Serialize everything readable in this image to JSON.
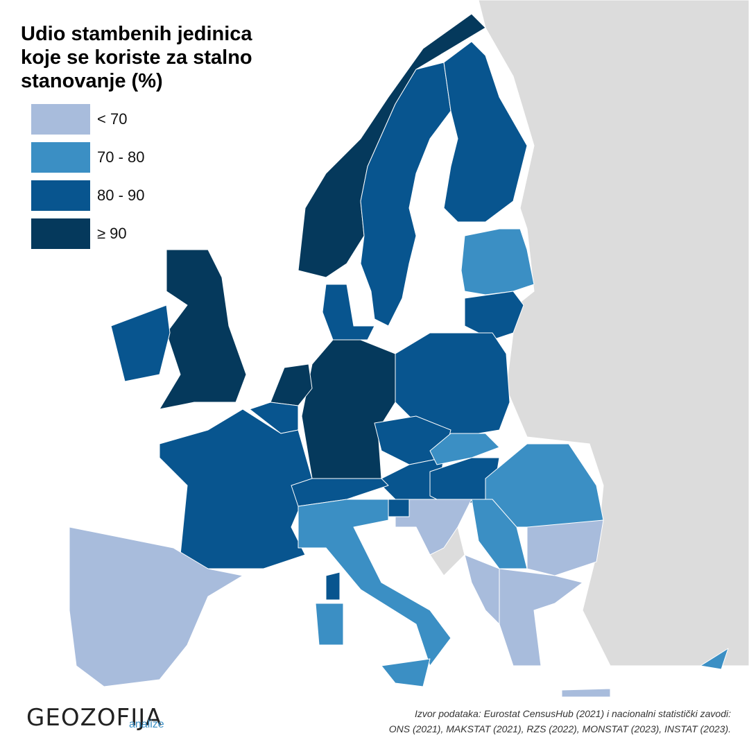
{
  "title": [
    "Udio stambenih jedinica",
    "koje se koriste za stalno",
    "stanovanje (%)"
  ],
  "legend": [
    {
      "label": "< 70",
      "color": "#a8bcdc"
    },
    {
      "label": "70 - 80",
      "color": "#3b8fc4"
    },
    {
      "label": "80 - 90",
      "color": "#08558f"
    },
    {
      "label": "≥ 90",
      "color": "#05395c"
    }
  ],
  "source": [
    "Izvor podataka: Eurostat CensusHub (2021) i nacionalni statistički zavodi:",
    "ONS (2021), MAKSTAT (2021), RZS (2022), MONSTAT (2023), INSTAT (2023)."
  ],
  "logo": {
    "name": "GEOZOFIJA",
    "sub": "analize"
  }
}
